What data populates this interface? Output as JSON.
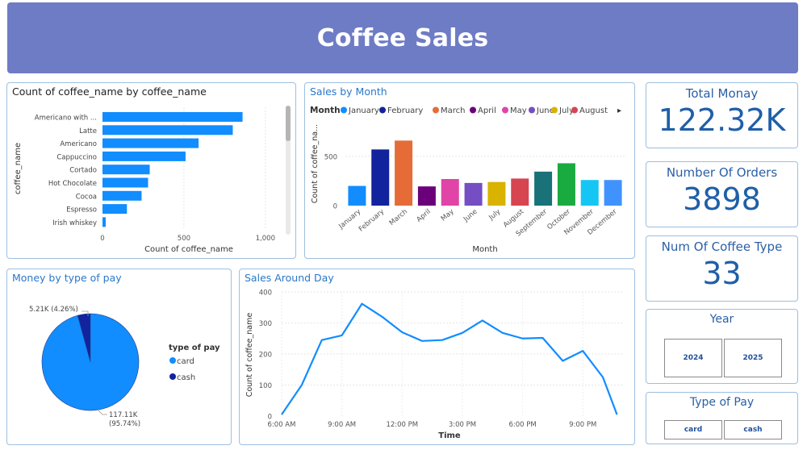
{
  "header": {
    "title": "Coffee Sales"
  },
  "colors": {
    "header_bg": "#6e7cc6",
    "bar_blue": "#118dff",
    "accent_blue": "#1f5fa8",
    "card": "#118dff",
    "cash": "#12239e"
  },
  "coffee_chart": {
    "title": "Count of coffee_name by coffee_name",
    "chart_data": {
      "type": "bar",
      "orientation": "horizontal",
      "categories": [
        "Americano with ...",
        "Latte",
        "Americano",
        "Cappuccino",
        "Cortado",
        "Hot Chocolate",
        "Cocoa",
        "Espresso",
        "Irish whiskey"
      ],
      "values": [
        860,
        800,
        590,
        510,
        290,
        280,
        240,
        150,
        20
      ],
      "xlabel": "Count of coffee_name",
      "ylabel": "coffee_name",
      "xlim": [
        0,
        1100
      ],
      "xticks": [
        "0",
        "500",
        "1,000"
      ]
    }
  },
  "month_chart": {
    "title": "Sales by Month",
    "legend_label": "Month",
    "chart_data": {
      "type": "bar",
      "categories": [
        "January",
        "February",
        "March",
        "April",
        "May",
        "June",
        "July",
        "August",
        "September",
        "October",
        "November",
        "December"
      ],
      "values": [
        200,
        570,
        660,
        195,
        270,
        230,
        240,
        275,
        345,
        430,
        260,
        260
      ],
      "colors": [
        "#118dff",
        "#12239e",
        "#e66c37",
        "#6b007b",
        "#e044a7",
        "#744ec2",
        "#d9b300",
        "#d64550",
        "#197278",
        "#1aab40",
        "#15c6f4",
        "#4092ff"
      ],
      "legend_visible": [
        "January",
        "February",
        "March",
        "April",
        "May",
        "June",
        "July",
        "August"
      ],
      "xlabel": "Month",
      "ylabel": "Count of coffee_na...",
      "ylim": [
        0,
        720
      ],
      "yticks": [
        "0",
        "500"
      ]
    }
  },
  "kpis": {
    "total_money": {
      "label": "Total Monay",
      "value": "122.32K"
    },
    "orders": {
      "label": "Number Of Orders",
      "value": "3898"
    },
    "coffee_types": {
      "label": "Num Of Coffee Type",
      "value": "33"
    }
  },
  "pie_chart": {
    "title": "Money by type of pay",
    "legend_title": "type of pay",
    "chart_data": {
      "type": "pie",
      "labels": [
        "card",
        "cash"
      ],
      "values": [
        117.11,
        5.21
      ],
      "data_labels": [
        {
          "value": "117.11K",
          "pct": "(95.74%)"
        },
        {
          "value": "5.21K (4.26%)"
        }
      ]
    }
  },
  "day_chart": {
    "title": "Sales Around Day",
    "chart_data": {
      "type": "line",
      "x": [
        6,
        7,
        8,
        9,
        10,
        11,
        12,
        13,
        14,
        15,
        16,
        17,
        18,
        19,
        20,
        21,
        22,
        22.7
      ],
      "y": [
        5,
        100,
        245,
        260,
        362,
        320,
        270,
        242,
        245,
        268,
        308,
        268,
        250,
        252,
        178,
        210,
        125,
        5
      ],
      "xlabel": "Time",
      "ylabel": "Count of coffee_name",
      "xlim": [
        6,
        23
      ],
      "ylim": [
        0,
        400
      ],
      "yticks": [
        "0",
        "100",
        "200",
        "300",
        "400"
      ],
      "xticks": [
        "6:00 AM",
        "9:00 AM",
        "12:00 PM",
        "3:00 PM",
        "6:00 PM",
        "9:00 PM"
      ]
    }
  },
  "slicers": {
    "year": {
      "title": "Year",
      "options": [
        "2024",
        "2025"
      ]
    },
    "pay": {
      "title": "Type of Pay",
      "options": [
        "card",
        "cash"
      ]
    }
  }
}
